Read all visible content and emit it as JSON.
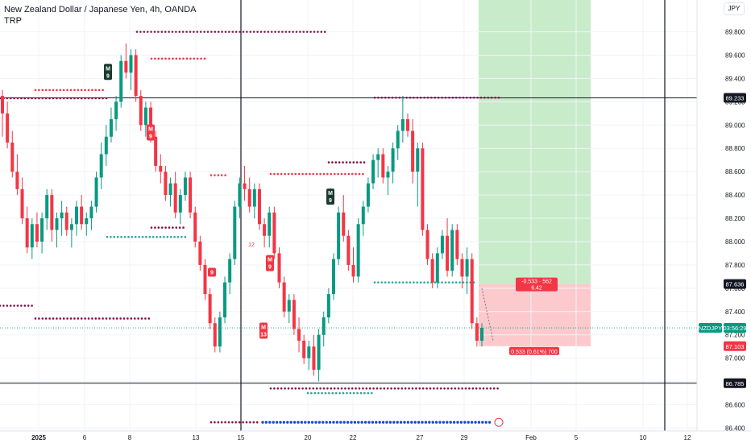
{
  "header": {
    "title": "New Zealand Dollar / Japanese Yen, 4h, OANDA",
    "indicator": "TRP",
    "currency": "JPY"
  },
  "colors": {
    "up": "#089981",
    "down": "#f23645",
    "resistance_dots": "#880e4f",
    "red_dots": "#f23645",
    "green_dots": "#26a69a",
    "blue_dots": "#1848cc",
    "profit_zone": "#c8ecc9",
    "loss_zone": "#fcc9cc"
  },
  "chart_data": {
    "type": "candlestick",
    "symbol": "NZDJPY",
    "y_axis": {
      "min": 86.4,
      "max": 89.9,
      "ticks": [
        "86.400",
        "86.600",
        "86.800",
        "87.000",
        "87.200",
        "87.400",
        "87.600",
        "87.800",
        "88.000",
        "88.200",
        "88.400",
        "88.600",
        "88.800",
        "89.000",
        "89.200",
        "89.400",
        "89.600",
        "89.800"
      ]
    },
    "x_axis": {
      "ticks": [
        "2025",
        "6",
        "8",
        "13",
        "15",
        "20",
        "22",
        "27",
        "29",
        "Feb",
        "5",
        "10",
        "12"
      ]
    },
    "price_labels": [
      {
        "text": "89.233",
        "value": 89.233,
        "style": "dark"
      },
      {
        "text": "87.636",
        "value": 87.636,
        "style": "dark"
      },
      {
        "text": "NZDJPY",
        "value": 87.26,
        "style": "green"
      },
      {
        "text": "03:56:29",
        "value": 87.26,
        "style": "green"
      },
      {
        "text": "87.103",
        "value": 87.103,
        "style": "red"
      },
      {
        "text": "86.785",
        "value": 86.785,
        "style": "dark"
      }
    ],
    "horizontal_lines": [
      89.233,
      86.785
    ],
    "position": {
      "entry": 87.636,
      "target": 89.9,
      "stop": 87.103,
      "top_label_line1": "-0.533 · 562",
      "top_label_line2": "6.42",
      "bottom_label": "0.533 (0.61%) 700"
    },
    "signal_labels": [
      {
        "text": "M",
        "sub": "9",
        "type": "buy"
      },
      {
        "text": "M",
        "sub": "9",
        "type": "sell"
      },
      {
        "text": "M",
        "sub": "9",
        "type": "buy"
      },
      {
        "text": "9",
        "sub": "",
        "type": "sell"
      },
      {
        "text": "M",
        "sub": "9",
        "type": "sell"
      },
      {
        "text": "M",
        "sub": "13",
        "type": "sell"
      },
      {
        "text": "12",
        "sub": "",
        "type": "plain"
      }
    ],
    "candles": [
      [
        89.25,
        89.3,
        88.9,
        89.1
      ],
      [
        89.1,
        89.2,
        88.8,
        88.85
      ],
      [
        88.85,
        88.95,
        88.55,
        88.6
      ],
      [
        88.6,
        88.75,
        88.4,
        88.45
      ],
      [
        88.45,
        88.55,
        88.15,
        88.2
      ],
      [
        88.2,
        88.3,
        87.9,
        87.95
      ],
      [
        87.95,
        88.2,
        87.85,
        88.15
      ],
      [
        88.15,
        88.25,
        87.95,
        88.0
      ],
      [
        88.0,
        88.25,
        87.9,
        88.2
      ],
      [
        88.2,
        88.45,
        88.1,
        88.4
      ],
      [
        88.4,
        88.45,
        88.0,
        88.1
      ],
      [
        88.1,
        88.25,
        87.95,
        88.2
      ],
      [
        88.2,
        88.35,
        88.05,
        88.25
      ],
      [
        88.25,
        88.3,
        88.05,
        88.1
      ],
      [
        88.1,
        88.2,
        87.95,
        88.15
      ],
      [
        88.15,
        88.35,
        88.05,
        88.3
      ],
      [
        88.3,
        88.4,
        88.1,
        88.15
      ],
      [
        88.15,
        88.25,
        88.05,
        88.2
      ],
      [
        88.2,
        88.35,
        88.1,
        88.3
      ],
      [
        88.3,
        88.6,
        88.25,
        88.55
      ],
      [
        88.55,
        88.85,
        88.45,
        88.75
      ],
      [
        88.75,
        89.0,
        88.65,
        88.9
      ],
      [
        88.9,
        89.15,
        88.85,
        89.05
      ],
      [
        89.05,
        89.25,
        88.95,
        89.2
      ],
      [
        89.2,
        89.6,
        89.15,
        89.55
      ],
      [
        89.55,
        89.7,
        89.4,
        89.45
      ],
      [
        89.45,
        89.65,
        89.3,
        89.6
      ],
      [
        89.6,
        89.65,
        89.2,
        89.25
      ],
      [
        89.25,
        89.3,
        88.95,
        89.0
      ],
      [
        89.0,
        89.2,
        88.9,
        89.15
      ],
      [
        89.15,
        89.2,
        88.85,
        88.9
      ],
      [
        88.9,
        88.95,
        88.6,
        88.65
      ],
      [
        88.65,
        88.75,
        88.5,
        88.6
      ],
      [
        88.6,
        88.65,
        88.35,
        88.4
      ],
      [
        88.4,
        88.55,
        88.3,
        88.5
      ],
      [
        88.5,
        88.6,
        88.2,
        88.25
      ],
      [
        88.25,
        88.45,
        88.15,
        88.4
      ],
      [
        88.4,
        88.6,
        88.35,
        88.55
      ],
      [
        88.55,
        88.6,
        88.2,
        88.25
      ],
      [
        88.25,
        88.3,
        87.95,
        88.0
      ],
      [
        88.0,
        88.05,
        87.75,
        87.8
      ],
      [
        87.8,
        87.85,
        87.5,
        87.55
      ],
      [
        87.55,
        87.6,
        87.25,
        87.3
      ],
      [
        87.3,
        87.35,
        87.05,
        87.1
      ],
      [
        87.1,
        87.4,
        87.05,
        87.35
      ],
      [
        87.35,
        87.7,
        87.3,
        87.65
      ],
      [
        87.65,
        87.9,
        87.55,
        87.85
      ],
      [
        87.85,
        88.35,
        87.8,
        88.3
      ],
      [
        88.3,
        88.55,
        88.2,
        88.5
      ],
      [
        88.5,
        88.65,
        88.35,
        88.45
      ],
      [
        88.45,
        88.55,
        88.25,
        88.3
      ],
      [
        88.3,
        88.5,
        88.2,
        88.45
      ],
      [
        88.45,
        88.5,
        88.1,
        88.15
      ],
      [
        88.15,
        88.2,
        87.95,
        88.05
      ],
      [
        88.05,
        88.3,
        87.95,
        88.25
      ],
      [
        88.25,
        88.3,
        87.85,
        87.9
      ],
      [
        87.9,
        87.95,
        87.6,
        87.65
      ],
      [
        87.65,
        87.7,
        87.35,
        87.4
      ],
      [
        87.4,
        87.55,
        87.3,
        87.5
      ],
      [
        87.5,
        87.55,
        87.2,
        87.25
      ],
      [
        87.25,
        87.35,
        87.05,
        87.15
      ],
      [
        87.15,
        87.2,
        86.95,
        87.0
      ],
      [
        87.0,
        87.15,
        86.9,
        87.1
      ],
      [
        87.1,
        87.2,
        86.85,
        86.9
      ],
      [
        86.9,
        87.25,
        86.8,
        87.2
      ],
      [
        87.2,
        87.4,
        87.1,
        87.35
      ],
      [
        87.35,
        87.6,
        87.3,
        87.55
      ],
      [
        87.55,
        87.9,
        87.5,
        87.85
      ],
      [
        87.85,
        88.3,
        87.8,
        88.25
      ],
      [
        88.25,
        88.4,
        88.0,
        88.05
      ],
      [
        88.05,
        88.1,
        87.75,
        87.8
      ],
      [
        87.8,
        87.95,
        87.65,
        87.7
      ],
      [
        87.7,
        88.2,
        87.65,
        88.15
      ],
      [
        88.15,
        88.35,
        88.05,
        88.3
      ],
      [
        88.3,
        88.55,
        88.25,
        88.5
      ],
      [
        88.5,
        88.75,
        88.45,
        88.7
      ],
      [
        88.7,
        88.8,
        88.55,
        88.75
      ],
      [
        88.75,
        88.8,
        88.5,
        88.55
      ],
      [
        88.55,
        88.65,
        88.4,
        88.6
      ],
      [
        88.6,
        88.85,
        88.5,
        88.8
      ],
      [
        88.8,
        89.0,
        88.7,
        88.95
      ],
      [
        88.95,
        89.25,
        88.85,
        89.05
      ],
      [
        89.05,
        89.1,
        88.9,
        88.95
      ],
      [
        88.95,
        89.05,
        88.5,
        88.6
      ],
      [
        88.6,
        88.85,
        88.3,
        88.8
      ],
      [
        88.8,
        88.85,
        88.05,
        88.1
      ],
      [
        88.1,
        88.15,
        87.8,
        87.85
      ],
      [
        87.85,
        87.9,
        87.6,
        87.65
      ],
      [
        87.65,
        87.95,
        87.6,
        87.9
      ],
      [
        87.9,
        88.1,
        87.85,
        88.05
      ],
      [
        88.05,
        88.2,
        87.7,
        87.75
      ],
      [
        87.75,
        88.15,
        87.7,
        88.1
      ],
      [
        88.1,
        88.15,
        87.8,
        87.85
      ],
      [
        87.85,
        87.9,
        87.6,
        87.7
      ],
      [
        87.7,
        87.95,
        87.55,
        87.85
      ],
      [
        87.85,
        87.9,
        87.25,
        87.3
      ],
      [
        87.3,
        87.35,
        87.1,
        87.15
      ],
      [
        87.15,
        87.3,
        87.1,
        87.26
      ]
    ]
  }
}
